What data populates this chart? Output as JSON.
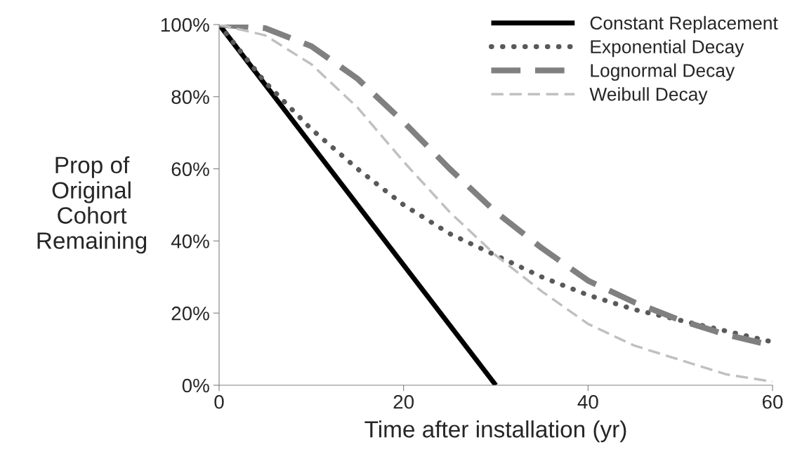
{
  "chart_data": {
    "type": "line",
    "xlabel": "Time after installation (yr)",
    "ylabel": "Prop of\nOriginal\nCohort\nRemaining",
    "x": [
      0,
      5,
      10,
      15,
      20,
      25,
      30,
      35,
      40,
      45,
      50,
      55,
      60
    ],
    "series": [
      {
        "name": "Constant Replacement",
        "color": "#000000",
        "line_style": "solid",
        "x": [
          0,
          30
        ],
        "values": [
          1.0,
          0.0
        ]
      },
      {
        "name": "Exponential Decay",
        "color": "#595959",
        "line_style": "dotted",
        "values": [
          1.0,
          0.84,
          0.71,
          0.6,
          0.5,
          0.42,
          0.36,
          0.3,
          0.25,
          0.21,
          0.18,
          0.15,
          0.12
        ]
      },
      {
        "name": "Lognormal Decay",
        "color": "#808080",
        "line_style": "dashed",
        "values": [
          1.0,
          0.99,
          0.94,
          0.85,
          0.73,
          0.6,
          0.48,
          0.38,
          0.29,
          0.23,
          0.18,
          0.14,
          0.11
        ]
      },
      {
        "name": "Weibull Decay",
        "color": "#c0c0c0",
        "line_style": "dashed",
        "values": [
          1.0,
          0.97,
          0.89,
          0.77,
          0.62,
          0.48,
          0.36,
          0.26,
          0.17,
          0.11,
          0.07,
          0.03,
          0.01
        ]
      }
    ],
    "xlim": [
      0,
      60
    ],
    "xticks": [
      0,
      20,
      40,
      60
    ],
    "ylim": [
      0,
      1
    ],
    "yticks": [
      {
        "value": 0,
        "label": "0%"
      },
      {
        "value": 0.2,
        "label": "20%"
      },
      {
        "value": 0.4,
        "label": "40%"
      },
      {
        "value": 0.6,
        "label": "60%"
      },
      {
        "value": 0.8,
        "label": "80%"
      },
      {
        "value": 1,
        "label": "100%"
      }
    ],
    "grid": false,
    "legend": "top right"
  }
}
